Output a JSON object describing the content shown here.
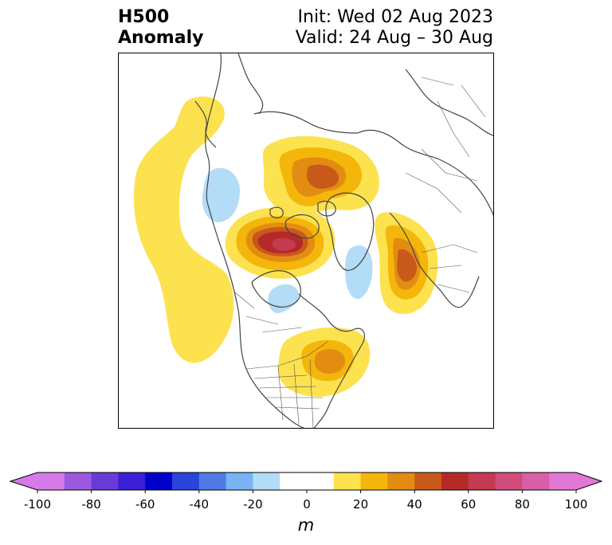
{
  "title": {
    "left_line1": "H500",
    "left_line2": "Anomaly",
    "right_line1": "Init: Wed 02 Aug 2023",
    "right_line2": "Valid: 24 Aug – 30 Aug"
  },
  "colorbar": {
    "unit": "m",
    "tick_labels": [
      "-100",
      "-80",
      "-60",
      "-40",
      "-20",
      "0",
      "20",
      "40",
      "60",
      "80",
      "100"
    ],
    "tick_values": [
      -100,
      -80,
      -60,
      -40,
      -20,
      0,
      20,
      40,
      60,
      80,
      100
    ],
    "bins": [
      {
        "min": -100,
        "max": -90,
        "color": "#d67ae8"
      },
      {
        "min": -90,
        "max": -80,
        "color": "#9b59e0"
      },
      {
        "min": -80,
        "max": -70,
        "color": "#6a3ad8"
      },
      {
        "min": -70,
        "max": -60,
        "color": "#3a1fd6"
      },
      {
        "min": -60,
        "max": -50,
        "color": "#0000cd"
      },
      {
        "min": -50,
        "max": -40,
        "color": "#2a44dc"
      },
      {
        "min": -40,
        "max": -30,
        "color": "#4f7ae6"
      },
      {
        "min": -30,
        "max": -20,
        "color": "#79b3f5"
      },
      {
        "min": -20,
        "max": -10,
        "color": "#b3dcf7"
      },
      {
        "min": -10,
        "max": 10,
        "color": "#ffffff"
      },
      {
        "min": 10,
        "max": 20,
        "color": "#fde250"
      },
      {
        "min": 20,
        "max": 30,
        "color": "#f4b60a"
      },
      {
        "min": 30,
        "max": 40,
        "color": "#e28d12"
      },
      {
        "min": 40,
        "max": 50,
        "color": "#c9591a"
      },
      {
        "min": 50,
        "max": 60,
        "color": "#b52a28"
      },
      {
        "min": 60,
        "max": 70,
        "color": "#c43a50"
      },
      {
        "min": 70,
        "max": 80,
        "color": "#cf4c7c"
      },
      {
        "min": 80,
        "max": 90,
        "color": "#d760a8"
      },
      {
        "min": 90,
        "max": 100,
        "color": "#e377d4"
      }
    ],
    "extend_low_color": "#d67ae8",
    "extend_high_color": "#e377d4"
  },
  "map": {
    "projection": "polar-stereographic-north",
    "coastline_color": "#444444",
    "anomaly_features": [
      {
        "name": "north-pacific-ridge",
        "sign": "positive",
        "peak": 15
      },
      {
        "name": "western-canada-trough",
        "sign": "negative",
        "peak": -15
      },
      {
        "name": "hudson-bay-ridge",
        "sign": "positive",
        "peak": 65
      },
      {
        "name": "siberian-arctic-ridge",
        "sign": "positive",
        "peak": 50
      },
      {
        "name": "scandinavian-ridge",
        "sign": "positive",
        "peak": 45
      },
      {
        "name": "greenland-trough",
        "sign": "negative",
        "peak": -15
      },
      {
        "name": "great-lakes-trough",
        "sign": "negative",
        "peak": -15
      },
      {
        "name": "eastern-us-ridge",
        "sign": "positive",
        "peak": 35
      }
    ]
  }
}
